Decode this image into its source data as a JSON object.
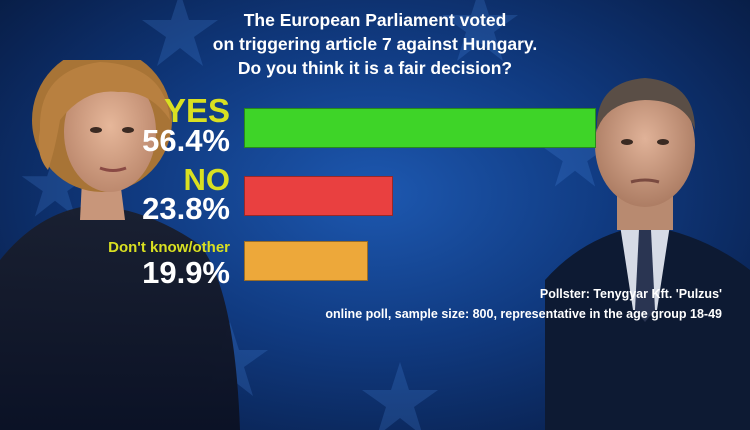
{
  "title_lines": [
    "The European Parliament voted",
    "on triggering article 7 against Hungary.",
    "Do you think it is a fair decision?"
  ],
  "colors": {
    "background": "#0f3a80",
    "category_label": "#d9e021",
    "percent_label": "#ffffff",
    "yes_bar": "#3ed428",
    "no_bar": "#e94040",
    "dontknow_bar": "#eda83a"
  },
  "chart_data": {
    "type": "bar",
    "orientation": "horizontal",
    "categories": [
      "YES",
      "NO",
      "Don't know/other"
    ],
    "values": [
      56.4,
      23.8,
      19.9
    ],
    "value_labels": [
      "56.4%",
      "23.8%",
      "19.9%"
    ],
    "unit": "%",
    "title": "The European Parliament voted on triggering article 7 against Hungary. Do you think it is a fair decision?"
  },
  "footnote": {
    "pollster": "Pollster: Tenygyar Kft. 'Pulzus'",
    "details": "online poll, sample size: 800, representative in the age group 18-49"
  },
  "images": {
    "left": "woman-portrait",
    "right": "man-portrait"
  }
}
